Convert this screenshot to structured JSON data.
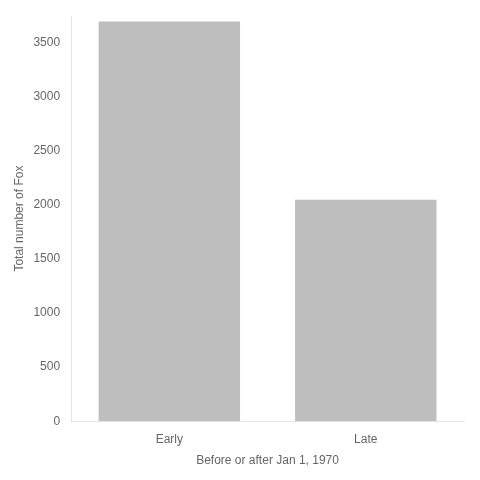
{
  "chart_data": {
    "type": "bar",
    "categories": [
      "Early",
      "Late"
    ],
    "values": [
      3700,
      2050
    ],
    "color": "#bebebe",
    "xlabel": "Before or after Jan 1, 1970",
    "ylabel": "Total number of Fox",
    "ylim": [
      0,
      3750
    ],
    "yticks": [
      0,
      500,
      1000,
      1500,
      2000,
      2500,
      3000,
      3500
    ],
    "grid": false
  }
}
